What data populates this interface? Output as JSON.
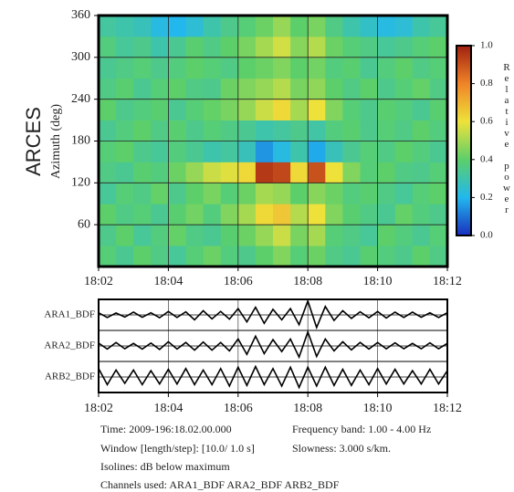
{
  "station": "ARCES",
  "caption": [
    "Time: 2009-196:18.02.00.000",
    "Frequency band: 1.00 - 4.00 Hz",
    "Window [length/step]: [10.0/ 1.0 s]",
    "Slowness: 3.000 s/km.",
    "Isolines: dB below maximum",
    "Channels used: ARA1_BDF ARA2_BDF ARB2_BDF"
  ],
  "chart_data": [
    {
      "type": "heatmap",
      "y_label": "Azimuth (deg)",
      "colorbar_label": "Relative power",
      "x_bins": [
        2,
        2.5,
        3,
        3.5,
        4,
        4.5,
        5,
        5.5,
        6,
        6.5,
        7,
        7.5,
        8,
        8.5,
        9,
        9.5,
        10,
        10.5,
        11,
        11.5,
        12
      ],
      "y_bins": [
        0,
        30,
        60,
        90,
        120,
        150,
        180,
        210,
        240,
        270,
        300,
        330,
        360
      ],
      "z": [
        [
          0.38,
          0.34,
          0.4,
          0.36,
          0.33,
          0.38,
          0.42,
          0.37,
          0.35,
          0.4,
          0.45,
          0.38,
          0.42,
          0.36,
          0.34,
          0.39,
          0.37,
          0.35,
          0.4,
          0.36
        ],
        [
          0.35,
          0.4,
          0.33,
          0.37,
          0.41,
          0.36,
          0.34,
          0.39,
          0.42,
          0.48,
          0.55,
          0.44,
          0.5,
          0.38,
          0.36,
          0.33,
          0.4,
          0.37,
          0.34,
          0.38
        ],
        [
          0.4,
          0.36,
          0.38,
          0.34,
          0.39,
          0.43,
          0.37,
          0.45,
          0.5,
          0.62,
          0.66,
          0.52,
          0.6,
          0.45,
          0.39,
          0.36,
          0.34,
          0.41,
          0.37,
          0.35
        ],
        [
          0.33,
          0.38,
          0.36,
          0.41,
          0.35,
          0.4,
          0.44,
          0.38,
          0.42,
          0.5,
          0.48,
          0.4,
          0.46,
          0.42,
          0.37,
          0.39,
          0.36,
          0.33,
          0.38,
          0.4
        ],
        [
          0.36,
          0.34,
          0.39,
          0.37,
          0.42,
          0.48,
          0.55,
          0.58,
          0.62,
          0.95,
          0.92,
          0.62,
          0.9,
          0.6,
          0.45,
          0.38,
          0.4,
          0.36,
          0.35,
          0.38
        ],
        [
          0.38,
          0.4,
          0.35,
          0.33,
          0.37,
          0.34,
          0.3,
          0.32,
          0.28,
          0.15,
          0.22,
          0.3,
          0.18,
          0.28,
          0.34,
          0.38,
          0.36,
          0.4,
          0.37,
          0.34
        ],
        [
          0.34,
          0.37,
          0.4,
          0.36,
          0.39,
          0.35,
          0.38,
          0.36,
          0.34,
          0.3,
          0.32,
          0.35,
          0.31,
          0.37,
          0.39,
          0.35,
          0.38,
          0.36,
          0.4,
          0.37
        ],
        [
          0.4,
          0.35,
          0.37,
          0.39,
          0.34,
          0.38,
          0.41,
          0.44,
          0.48,
          0.55,
          0.62,
          0.5,
          0.6,
          0.45,
          0.38,
          0.35,
          0.39,
          0.37,
          0.34,
          0.39
        ],
        [
          0.36,
          0.39,
          0.34,
          0.38,
          0.4,
          0.36,
          0.35,
          0.42,
          0.45,
          0.48,
          0.52,
          0.44,
          0.47,
          0.4,
          0.36,
          0.4,
          0.35,
          0.38,
          0.41,
          0.36
        ],
        [
          0.34,
          0.36,
          0.38,
          0.35,
          0.37,
          0.4,
          0.38,
          0.36,
          0.4,
          0.42,
          0.45,
          0.4,
          0.43,
          0.37,
          0.39,
          0.34,
          0.37,
          0.4,
          0.36,
          0.38
        ],
        [
          0.37,
          0.33,
          0.35,
          0.3,
          0.34,
          0.39,
          0.36,
          0.4,
          0.44,
          0.5,
          0.56,
          0.46,
          0.52,
          0.42,
          0.38,
          0.36,
          0.33,
          0.35,
          0.38,
          0.4
        ],
        [
          0.32,
          0.3,
          0.28,
          0.22,
          0.2,
          0.24,
          0.3,
          0.35,
          0.38,
          0.42,
          0.48,
          0.4,
          0.44,
          0.36,
          0.3,
          0.26,
          0.22,
          0.24,
          0.3,
          0.33
        ]
      ],
      "zlim": [
        0,
        1
      ],
      "colormap": [
        "#1a2fbf",
        "#22b8ee",
        "#5ccf6a",
        "#eee23a",
        "#f08428",
        "#a02010"
      ],
      "colorbar_ticks": [
        {
          "value": 0,
          "label": "0.0"
        },
        0.2,
        0.4,
        0.6,
        0.8,
        {
          "value": 1,
          "label": "1.0"
        }
      ],
      "xlim": [
        2,
        12
      ],
      "xticks": [
        {
          "value": 2,
          "label": "18:02"
        },
        {
          "value": 4,
          "label": "18:04"
        },
        {
          "value": 6,
          "label": "18:06"
        },
        {
          "value": 8,
          "label": "18:08"
        },
        {
          "value": 10,
          "label": "18:10"
        },
        {
          "value": 12,
          "label": "18:12"
        }
      ],
      "ylim": [
        0,
        360
      ],
      "yticks": [
        60,
        120,
        180,
        240,
        300,
        360
      ],
      "grid": true
    },
    {
      "type": "waveform",
      "x": [
        2,
        2.25,
        2.5,
        2.75,
        3,
        3.25,
        3.5,
        3.75,
        4,
        4.25,
        4.5,
        4.75,
        5,
        5.25,
        5.5,
        5.75,
        6,
        6.25,
        6.5,
        6.75,
        7,
        7.25,
        7.5,
        7.75,
        8,
        8.25,
        8.5,
        8.75,
        9,
        9.25,
        9.5,
        9.75,
        10,
        10.25,
        10.5,
        10.75,
        11,
        11.25,
        11.5,
        11.75,
        12
      ],
      "series": [
        {
          "name": "ARA1_BDF",
          "color": "#000000",
          "values": [
            0.15,
            0.18,
            0.14,
            0.16,
            0.2,
            0.17,
            0.15,
            0.2,
            0.25,
            0.18,
            0.22,
            0.35,
            0.3,
            0.28,
            0.25,
            0.3,
            0.45,
            0.5,
            0.55,
            0.6,
            0.4,
            0.35,
            0.45,
            0.7,
            1.0,
            0.9,
            0.6,
            0.4,
            0.3,
            0.25,
            0.22,
            0.2,
            0.25,
            0.22,
            0.2,
            0.18,
            0.2,
            0.17,
            0.15,
            0.18,
            0.16
          ]
        },
        {
          "name": "ARA2_BDF",
          "color": "#000000",
          "values": [
            0.2,
            0.22,
            0.25,
            0.2,
            0.18,
            0.22,
            0.2,
            0.25,
            0.3,
            0.22,
            0.25,
            0.3,
            0.28,
            0.3,
            0.25,
            0.35,
            0.5,
            0.6,
            0.7,
            0.55,
            0.45,
            0.4,
            0.5,
            0.8,
            1.0,
            0.75,
            0.5,
            0.35,
            0.3,
            0.28,
            0.25,
            0.22,
            0.25,
            0.2,
            0.22,
            0.2,
            0.18,
            0.2,
            0.22,
            0.2,
            0.18
          ]
        },
        {
          "name": "ARB2_BDF",
          "color": "#000000",
          "values": [
            0.6,
            0.55,
            0.5,
            0.45,
            0.5,
            0.55,
            0.45,
            0.5,
            0.55,
            0.5,
            0.6,
            0.55,
            0.5,
            0.55,
            0.6,
            0.65,
            0.7,
            0.6,
            0.75,
            0.55,
            0.6,
            0.65,
            0.7,
            0.75,
            0.7,
            0.65,
            0.7,
            0.6,
            0.55,
            0.6,
            0.5,
            0.55,
            0.6,
            0.5,
            0.55,
            0.5,
            0.45,
            0.5,
            0.55,
            0.5,
            0.45
          ]
        }
      ],
      "xlim": [
        2,
        12
      ],
      "xticks": [
        {
          "value": 2,
          "label": "18:02"
        },
        {
          "value": 4,
          "label": "18:04"
        },
        {
          "value": 6,
          "label": "18:06"
        },
        {
          "value": 8,
          "label": "18:08"
        },
        {
          "value": 10,
          "label": "18:10"
        },
        {
          "value": 12,
          "label": "18:12"
        }
      ],
      "grid": true
    }
  ]
}
